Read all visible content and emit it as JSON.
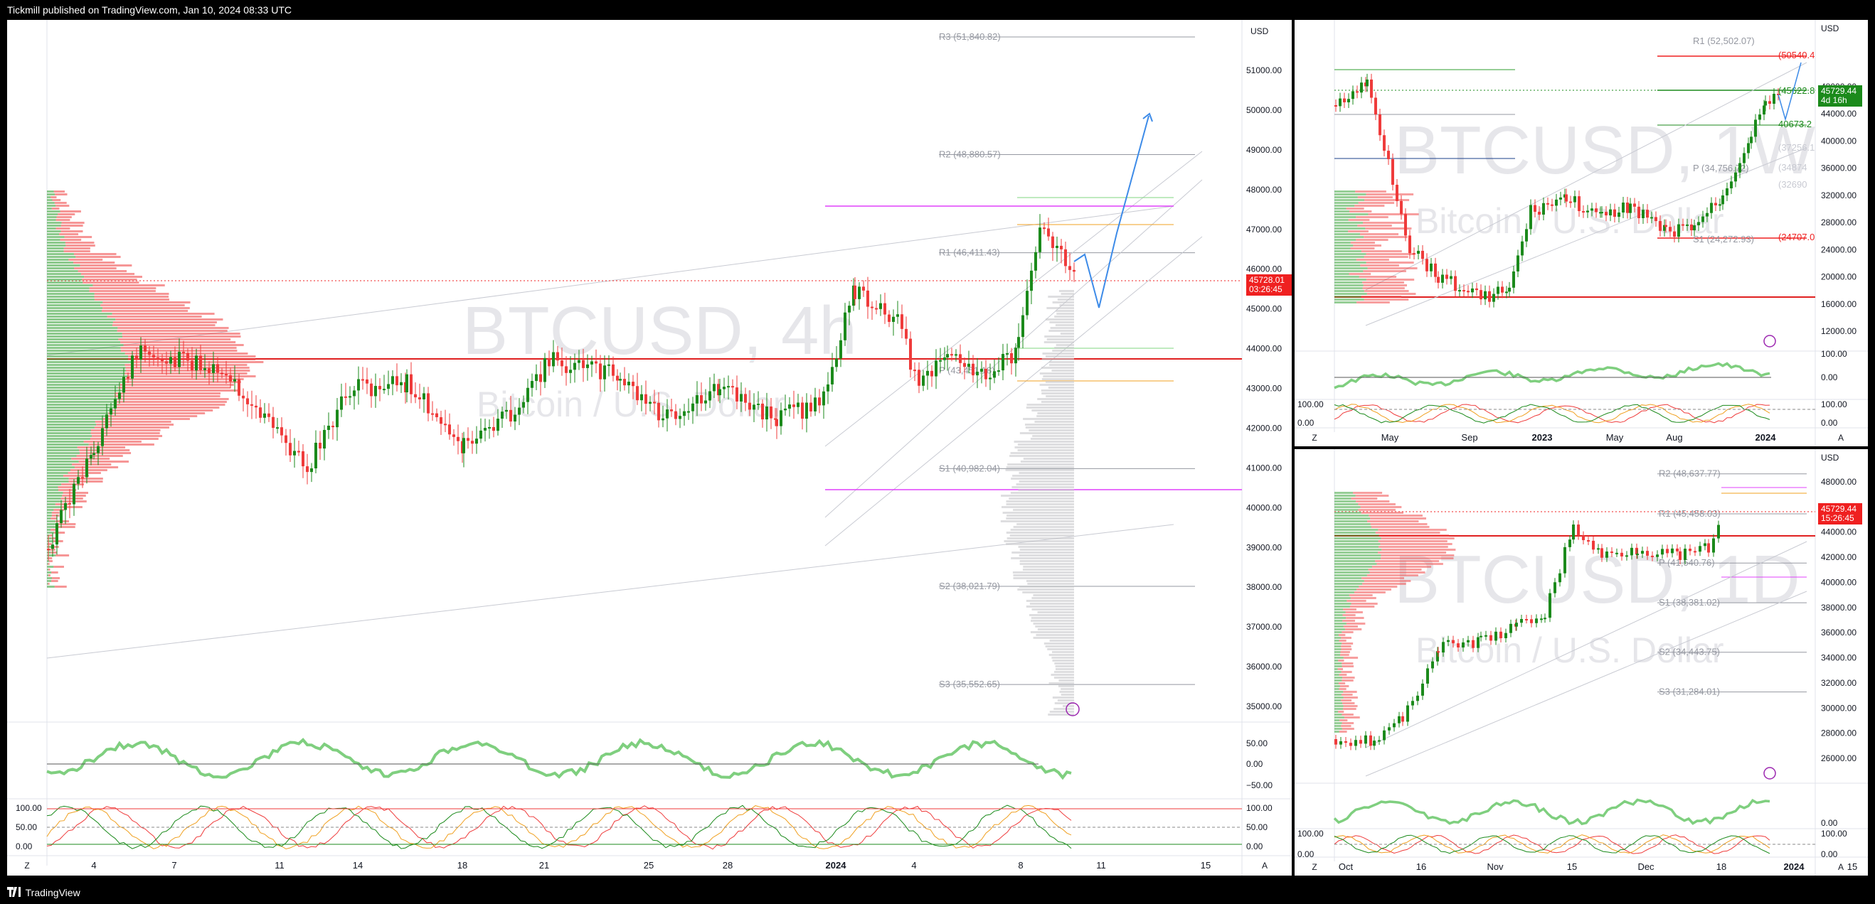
{
  "header": {
    "publisher": "Tickmill published on TradingView.com, Jan 10, 2024 08:33 UTC"
  },
  "footer": {
    "brand": "TradingView"
  },
  "colors": {
    "up": "#1b8a1b",
    "down": "#ef3b3b",
    "pivot": "#9598a1",
    "magenta": "#e040fb",
    "orange": "#f0a020",
    "blue": "#3d8be8",
    "price_badge": "#ef2020"
  },
  "main": {
    "currency": "USD",
    "watermark_symbol": "BTCUSD, 4h",
    "watermark_name": "Bitcoin / U.S. Dollar",
    "price_badge": {
      "price": "45728.01",
      "countdown": "03:26:45"
    },
    "y_ticks": [
      "51000.00",
      "50000.00",
      "49000.00",
      "48000.00",
      "47000.00",
      "46000.00",
      "45000.00",
      "44000.00",
      "43000.00",
      "42000.00",
      "41000.00",
      "40000.00",
      "39000.00",
      "38000.00",
      "37000.00",
      "36000.00",
      "35000.00"
    ],
    "pivots": [
      "R3 (51,840.82)",
      "R2 (48,880.57)",
      "R1 (46,411.43)",
      "P (43,451.18)",
      "S1 (40,982.04)",
      "S2 (38,021.79)",
      "S3 (35,552.65)"
    ],
    "x_ticks": [
      "4",
      "7",
      "11",
      "14",
      "18",
      "21",
      "25",
      "28",
      "2024",
      "4",
      "8",
      "11",
      "15"
    ],
    "rsi_ticks": [
      "50.00",
      "0.00",
      "−50.00"
    ],
    "stoch_ticks": [
      "100.00",
      "50.00",
      "0.00"
    ],
    "stoch_right_ticks": [
      "100.00",
      "50.00",
      "0.00"
    ],
    "z_label": "Z",
    "a_label": "A"
  },
  "weekly": {
    "currency": "USD",
    "watermark_symbol": "BTCUSD, 1W",
    "watermark_name": "Bitcoin / U.S. Dollar",
    "price_badge": {
      "price": "45729.44",
      "countdown": "4d 16h"
    },
    "y_ticks": [
      "48000.00",
      "44000.00",
      "40000.00",
      "36000.00",
      "32000.00",
      "28000.00",
      "24000.00",
      "20000.00",
      "16000.00",
      "12000.00"
    ],
    "levels": [
      "R1 (52,502.07)",
      "(50540.4",
      "(45622.8",
      "40673.2",
      "(37256.1",
      "(34874",
      "(32690",
      "P (34,756.72)",
      "S1 (24,272.93)",
      "(24707.0"
    ],
    "x_ticks": [
      "May",
      "Sep",
      "2023",
      "May",
      "Aug",
      "2024"
    ],
    "rsi_ticks": [
      "100.00",
      "0.00"
    ],
    "stoch_ticks": [
      "100.00",
      "0.00"
    ],
    "stoch_right_ticks": [
      "100.00",
      "0.00"
    ],
    "z_label": "Z",
    "a_label": "A"
  },
  "daily": {
    "currency": "USD",
    "watermark_symbol": "BTCUSD, 1D",
    "watermark_name": "Bitcoin / U.S. Dollar",
    "price_badge": {
      "price": "45729.44",
      "countdown": "15:26:45"
    },
    "y_ticks": [
      "48000.00",
      "46000.00",
      "44000.00",
      "42000.00",
      "40000.00",
      "38000.00",
      "36000.00",
      "34000.00",
      "32000.00",
      "30000.00",
      "28000.00",
      "26000.00"
    ],
    "pivots": [
      "R2 (48,637.77)",
      "R1 (45,458.03)",
      "P (41,540.76)",
      "S1 (38,381.02)",
      "S2 (34,443.75)",
      "S3 (31,284.01)"
    ],
    "x_ticks": [
      "Oct",
      "16",
      "Nov",
      "15",
      "Dec",
      "18",
      "2024",
      "15"
    ],
    "rsi_ticks": [
      "0.00"
    ],
    "stoch_ticks": [
      "100.00",
      "0.00"
    ],
    "stoch_right_ticks": [
      "100.00",
      "0.00"
    ],
    "z_label": "Z",
    "a_label": "A"
  }
}
